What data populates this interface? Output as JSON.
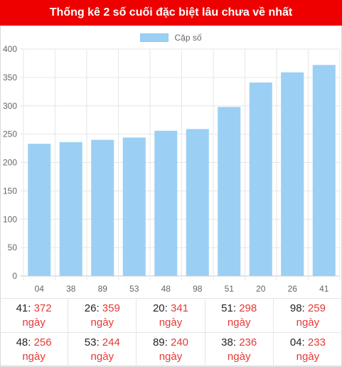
{
  "header": {
    "title": "Thống kê 2 số cuối đặc biệt lâu chưa về nhất"
  },
  "legend": {
    "label": "Cặp số"
  },
  "colors": {
    "header_bg": "#ee0000",
    "bar": "#9ccff4",
    "days_text": "#e53935"
  },
  "chart_data": {
    "type": "bar",
    "categories": [
      "04",
      "38",
      "89",
      "53",
      "48",
      "98",
      "51",
      "20",
      "26",
      "41"
    ],
    "series": [
      {
        "name": "Cặp số",
        "values": [
          233,
          236,
          240,
          244,
          256,
          259,
          298,
          341,
          359,
          372
        ]
      }
    ],
    "ylim": [
      0,
      400
    ],
    "yticks": [
      0,
      50,
      100,
      150,
      200,
      250,
      300,
      350,
      400
    ],
    "grid": true,
    "legend_position": "top-center"
  },
  "stats": {
    "unit": "ngày",
    "items": [
      {
        "pair": "41",
        "days": "372"
      },
      {
        "pair": "26",
        "days": "359"
      },
      {
        "pair": "20",
        "days": "341"
      },
      {
        "pair": "51",
        "days": "298"
      },
      {
        "pair": "98",
        "days": "259"
      },
      {
        "pair": "48",
        "days": "256"
      },
      {
        "pair": "53",
        "days": "244"
      },
      {
        "pair": "89",
        "days": "240"
      },
      {
        "pair": "38",
        "days": "236"
      },
      {
        "pair": "04",
        "days": "233"
      }
    ]
  }
}
